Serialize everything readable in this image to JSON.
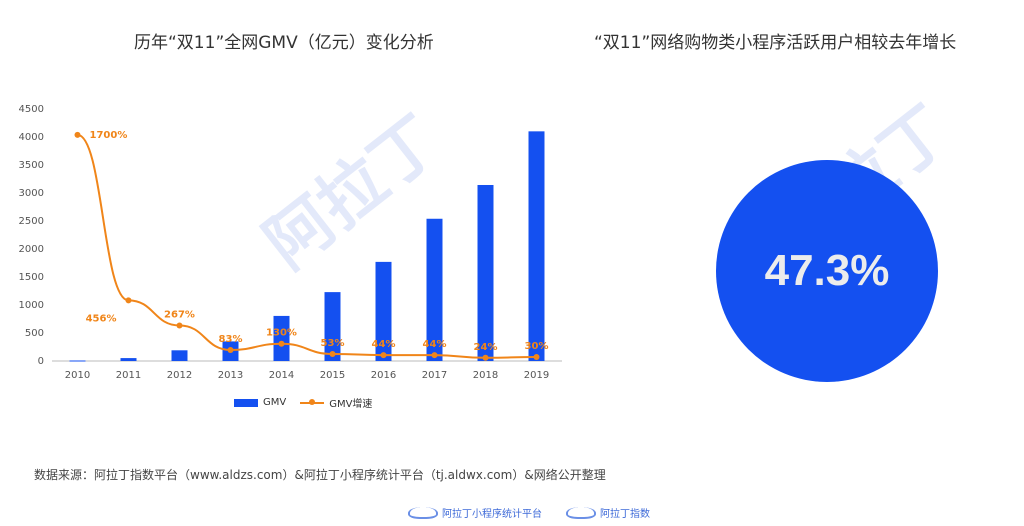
{
  "titles": {
    "left": "历年“双11”全网GMV（亿元）变化分析",
    "right": "“双11”网络购物类小程序活跃用户相较去年增长"
  },
  "chart_data": {
    "type": "bar",
    "title": "历年“双11”全网GMV（亿元）变化分析",
    "categories": [
      "2010",
      "2011",
      "2012",
      "2013",
      "2014",
      "2015",
      "2016",
      "2017",
      "2018",
      "2019"
    ],
    "series": [
      {
        "name": "GMV",
        "type": "bar",
        "color": "#1450f0",
        "values": [
          9,
          52,
          191,
          350,
          805,
          1230,
          1770,
          2540,
          3143,
          4101
        ]
      },
      {
        "name": "GMV增速",
        "type": "line",
        "color": "#f08519",
        "values": [
          1700,
          456,
          267,
          83,
          130,
          53,
          44,
          44,
          24,
          30
        ],
        "labels": [
          "1700%",
          "456%",
          "267%",
          "83%",
          "130%",
          "53%",
          "44%",
          "44%",
          "24%",
          "30%"
        ]
      }
    ],
    "y_ticks": [
      "0",
      "500",
      "1000",
      "1500",
      "2000",
      "2500",
      "3000",
      "3500",
      "4000",
      "4500"
    ],
    "ylim": [
      0,
      4500
    ],
    "legend": [
      "GMV",
      "GMV增速"
    ],
    "legend_position": "bottom",
    "grid": false
  },
  "kpi": {
    "value": "47.3%",
    "color": "#1450f0"
  },
  "watermark": "阿拉丁",
  "source": "数据来源：阿拉丁指数平台（www.aldzs.com）&阿拉丁小程序统计平台（tj.aldwx.com）&网络公开整理",
  "footer": {
    "logo1": "阿拉丁小程序统计平台",
    "logo2": "阿拉丁指数"
  }
}
